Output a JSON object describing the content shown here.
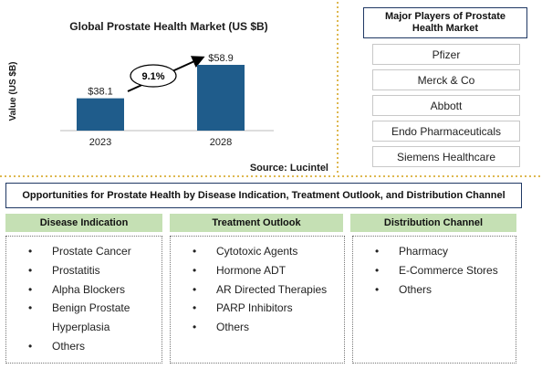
{
  "chart_data": {
    "type": "bar",
    "title": "Global Prostate Health Market (US $B)",
    "ylabel": "Value (US $B)",
    "categories": [
      "2023",
      "2028"
    ],
    "values": [
      38.1,
      58.9
    ],
    "value_labels": [
      "$38.1",
      "$58.9"
    ],
    "color": "#1f5c8b",
    "ylim": [
      18,
      68
    ],
    "annotation": "9.1%",
    "source": "Source: Lucintel"
  },
  "players": {
    "title": "Major Players of Prostate Health Market",
    "items": [
      "Pfizer",
      "Merck & Co",
      "Abbott",
      "Endo Pharmaceuticals",
      "Siemens Healthcare"
    ]
  },
  "opportunities": {
    "title": "Opportunities for Prostate Health by Disease Indication, Treatment Outlook, and Distribution Channel",
    "columns": [
      {
        "title": "Disease Indication",
        "items": [
          "Prostate Cancer",
          "Prostatitis",
          "Alpha Blockers",
          "Benign Prostate Hyperplasia",
          "Others"
        ]
      },
      {
        "title": "Treatment Outlook",
        "items": [
          "Cytotoxic Agents",
          "Hormone ADT",
          "AR Directed Therapies",
          "PARP Inhibitors",
          "Others"
        ]
      },
      {
        "title": "Distribution Channel",
        "items": [
          "Pharmacy",
          "E-Commerce Stores",
          "Others"
        ]
      }
    ]
  }
}
